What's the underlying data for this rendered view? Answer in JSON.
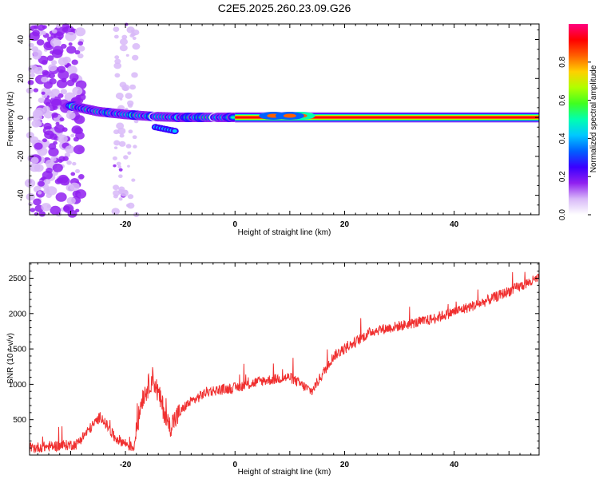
{
  "title": "C2E5.2025.260.23.09.G26",
  "chart_data": [
    {
      "type": "heatmap",
      "title": "C2E5.2025.260.23.09.G26",
      "xlabel": "Height of straight line (km)",
      "ylabel": "Frequency (Hz)",
      "xlim": [
        -37.5,
        55.5
      ],
      "ylim": [
        -50,
        48
      ],
      "x_ticks": [
        -20,
        0,
        20,
        40
      ],
      "x_tick_labels": [
        "-20",
        "0",
        "20",
        "40"
      ],
      "y_ticks": [
        -40,
        -20,
        0,
        20,
        40
      ],
      "y_tick_labels": [
        "-40",
        "-20",
        "0",
        "20",
        "40"
      ],
      "colorbar": {
        "label": "Normalized spectral amplitude",
        "range": [
          0,
          1
        ],
        "ticks": [
          0.0,
          0.2,
          0.4,
          0.6,
          0.8
        ],
        "tick_labels": [
          "0.0",
          "0.2",
          "0.4",
          "0.6",
          "0.8"
        ],
        "stops": [
          "#ffffff",
          "#d8b8f8",
          "#9020f0",
          "#3a00ff",
          "#0060ff",
          "#00c8ff",
          "#00ffb0",
          "#40ff20",
          "#b0ff00",
          "#ffd000",
          "#ff6000",
          "#ff0000",
          "#ff0080"
        ]
      },
      "ridge": {
        "start": -30,
        "end": 55.5,
        "freq_points": [
          [
            -30,
            6
          ],
          [
            -25,
            3
          ],
          [
            -20,
            1.5
          ],
          [
            -15,
            0.5
          ],
          [
            -10,
            0
          ],
          [
            55.5,
            0
          ]
        ],
        "side_feature": {
          "x_range": [
            -14.5,
            -11
          ],
          "freq_range": [
            -5,
            -7
          ]
        },
        "high_amplitude_from": 0
      },
      "noise_regions": [
        {
          "x_range": [
            -37.5,
            -28
          ],
          "freq_range": [
            -50,
            48
          ],
          "density": "high"
        },
        {
          "x_range": [
            -22,
            -18
          ],
          "freq_range": [
            -50,
            48
          ],
          "density": "low"
        }
      ]
    },
    {
      "type": "line",
      "series": [
        {
          "name": "SNR",
          "color": "#f03030"
        }
      ],
      "xlabel": "Height of straight line (km)",
      "ylabel": "SNR (10 * v/v)",
      "xlim": [
        -37.5,
        55.5
      ],
      "ylim": [
        0,
        2720
      ],
      "x_ticks": [
        -20,
        0,
        20,
        40
      ],
      "x_tick_labels": [
        "-20",
        "0",
        "20",
        "40"
      ],
      "y_ticks": [
        500,
        1000,
        1500,
        2000,
        2500
      ],
      "y_tick_labels": [
        "500",
        "1000",
        "1500",
        "2000",
        "2500"
      ],
      "trend_points": [
        [
          -37.5,
          100
        ],
        [
          -29,
          150
        ],
        [
          -24.5,
          550
        ],
        [
          -22,
          250
        ],
        [
          -18.5,
          100
        ],
        [
          -17,
          800
        ],
        [
          -15,
          1100
        ],
        [
          -12,
          400
        ],
        [
          -9,
          700
        ],
        [
          -5,
          900
        ],
        [
          0,
          950
        ],
        [
          5,
          1050
        ],
        [
          10,
          1100
        ],
        [
          14,
          900
        ],
        [
          18,
          1400
        ],
        [
          25,
          1750
        ],
        [
          35,
          1900
        ],
        [
          45,
          2150
        ],
        [
          55.5,
          2500
        ]
      ],
      "noise_amplitude": 150
    }
  ]
}
